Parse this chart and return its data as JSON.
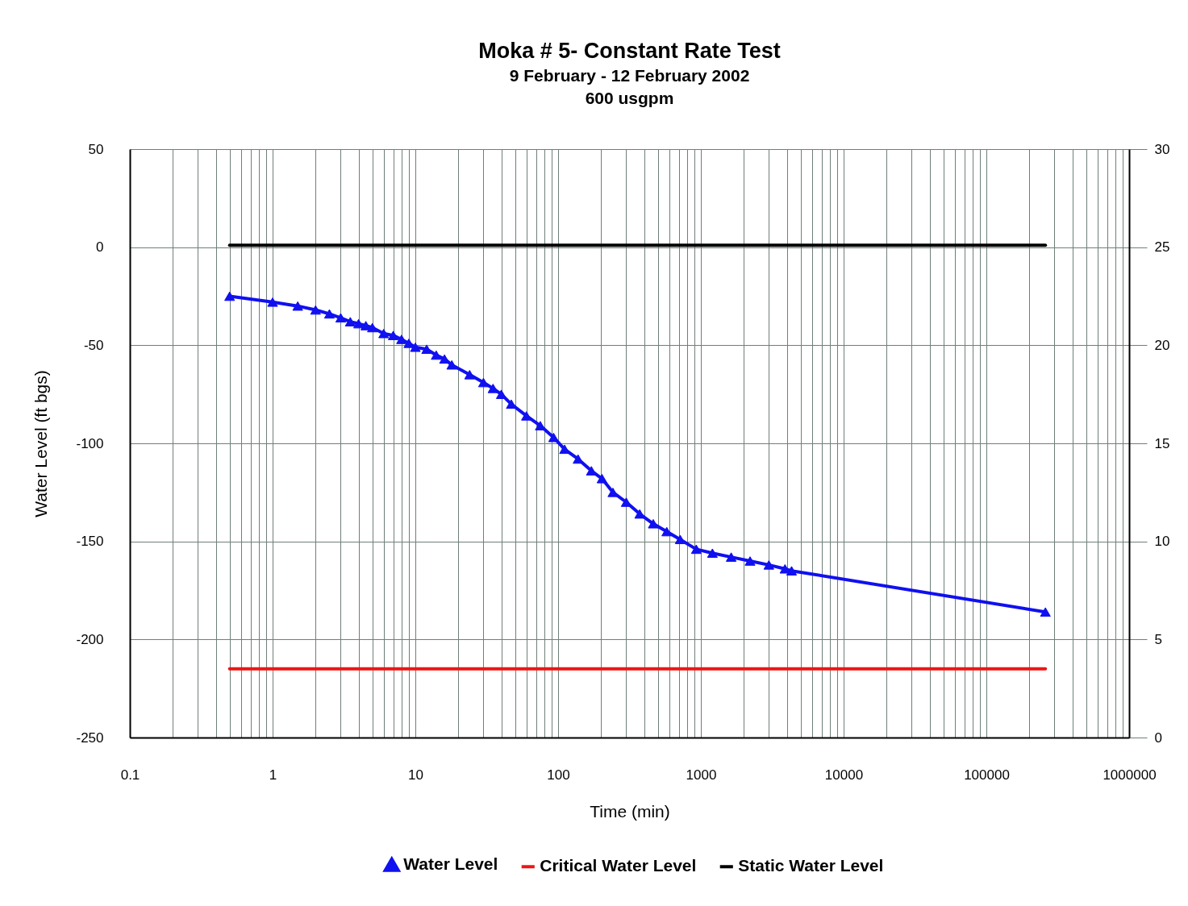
{
  "chart_data": {
    "type": "line",
    "title": "Moka # 5- Constant Rate Test",
    "subtitle": "9 February - 12 February 2002\n600 usgpm",
    "xlabel": "Time (min)",
    "ylabel": "Water Level (ft bgs)",
    "log": "x",
    "grid": true,
    "legend": "bottom",
    "xlim": [
      0.1,
      1000000
    ],
    "xticks": [
      0.1,
      {
        "value": 0.2,
        "label": null
      },
      {
        "value": 0.3,
        "label": null
      },
      {
        "value": 0.4,
        "label": null
      },
      {
        "value": 0.5,
        "label": null
      },
      {
        "value": 0.6,
        "label": null
      },
      {
        "value": 0.7,
        "label": null
      },
      {
        "value": 0.8,
        "label": null
      },
      {
        "value": 0.9,
        "label": null
      },
      1,
      {
        "value": 2,
        "label": null
      },
      {
        "value": 3,
        "label": null
      },
      {
        "value": 4,
        "label": null
      },
      {
        "value": 5,
        "label": null
      },
      {
        "value": 6,
        "label": null
      },
      {
        "value": 7,
        "label": null
      },
      {
        "value": 8,
        "label": null
      },
      {
        "value": 9,
        "label": null
      },
      10,
      {
        "value": 20,
        "label": null
      },
      {
        "value": 30,
        "label": null
      },
      {
        "value": 40,
        "label": null
      },
      {
        "value": 50,
        "label": null
      },
      {
        "value": 60,
        "label": null
      },
      {
        "value": 70,
        "label": null
      },
      {
        "value": 80,
        "label": null
      },
      {
        "value": 90,
        "label": null
      },
      100,
      {
        "value": 200,
        "label": null
      },
      {
        "value": 300,
        "label": null
      },
      {
        "value": 400,
        "label": null
      },
      {
        "value": 500,
        "label": null
      },
      {
        "value": 600,
        "label": null
      },
      {
        "value": 700,
        "label": null
      },
      {
        "value": 800,
        "label": null
      },
      {
        "value": 900,
        "label": null
      },
      1000,
      {
        "value": 2000,
        "label": null
      },
      {
        "value": 3000,
        "label": null
      },
      {
        "value": 4000,
        "label": null
      },
      {
        "value": 5000,
        "label": null
      },
      {
        "value": 6000,
        "label": null
      },
      {
        "value": 7000,
        "label": null
      },
      {
        "value": 8000,
        "label": null
      },
      {
        "value": 9000,
        "label": null
      },
      10000,
      {
        "value": 20000,
        "label": null
      },
      {
        "value": 30000,
        "label": null
      },
      {
        "value": 40000,
        "label": null
      },
      {
        "value": 50000,
        "label": null
      },
      {
        "value": 60000,
        "label": null
      },
      {
        "value": 70000,
        "label": null
      },
      {
        "value": 80000,
        "label": null
      },
      {
        "value": 90000,
        "label": null
      },
      100000,
      {
        "value": 200000,
        "label": null
      },
      {
        "value": 300000,
        "label": null
      },
      {
        "value": 400000,
        "label": null
      },
      {
        "value": 500000,
        "label": null
      },
      {
        "value": 600000,
        "label": null
      },
      {
        "value": 700000,
        "label": null
      },
      {
        "value": 800000,
        "label": null
      },
      {
        "value": 900000,
        "label": null
      },
      1000000
    ],
    "ylim": [
      -250,
      50
    ],
    "yticks": [
      -250,
      -200,
      -150,
      -100,
      -50,
      0,
      50
    ],
    "y2lim": [
      0,
      30
    ],
    "y2ticks": [
      0,
      5,
      10,
      15,
      20,
      25,
      30
    ],
    "series": [
      {
        "name": "Water Level",
        "color": "#1010f0",
        "marker": "triangle",
        "x": [
          0.5,
          1,
          1.5,
          2,
          2.5,
          3,
          3.5,
          4,
          4.5,
          5,
          6,
          7,
          8,
          9,
          10,
          12,
          14,
          16,
          18,
          24,
          30,
          35,
          40,
          47,
          60,
          75,
          93,
          111,
          138,
          171,
          203,
          242,
          300,
          373,
          464,
          577,
          716,
          929,
          1205,
          1631,
          2211,
          2995,
          3883,
          4320,
          259200
        ],
        "values": [
          -25,
          -28,
          -30,
          -32,
          -34,
          -36,
          -38,
          -39,
          -40,
          -41,
          -44,
          -45,
          -47,
          -49,
          -51,
          -52,
          -55,
          -57,
          -60,
          -65,
          -69,
          -72,
          -75,
          -80,
          -86,
          -91,
          -97,
          -103,
          -108,
          -114,
          -118,
          -125,
          -130,
          -136,
          -141,
          -145,
          -149,
          -154,
          -156,
          -158,
          -160,
          -162,
          -164,
          -165,
          -186
        ]
      },
      {
        "name": "Critical Water Level",
        "color": "#f01414",
        "x": [
          0.5,
          259200
        ],
        "values": [
          -215,
          -215
        ]
      },
      {
        "name": "Static Water Level",
        "color": "#000000",
        "x": [
          0.5,
          259200
        ],
        "values": [
          1,
          1
        ]
      }
    ]
  }
}
